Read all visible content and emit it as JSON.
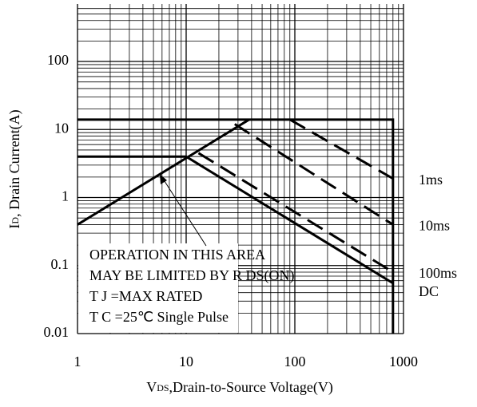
{
  "chart_data": {
    "type": "line",
    "x_label": {
      "main": "V",
      "sub": "DS",
      "rest": ",Drain-to-Source Voltage(V)"
    },
    "y_label": {
      "main": "I",
      "sub": "D",
      "rest": ", Drain Current(A)"
    },
    "log_x": true,
    "log_y": true,
    "grid": true,
    "xlim": [
      1,
      1000
    ],
    "ylim": [
      0.01,
      700
    ],
    "xticks": [
      1,
      10,
      100,
      1000
    ],
    "yticks": [
      0.01,
      0.1,
      1,
      10,
      100
    ],
    "xminor_ticks": [
      2,
      3,
      4,
      5,
      6,
      7,
      8,
      9,
      20,
      30,
      40,
      50,
      60,
      70,
      80,
      90,
      200,
      300,
      400,
      500,
      600,
      700,
      800,
      900
    ],
    "yminor_ticks": [
      0.02,
      0.03,
      0.04,
      0.05,
      0.06,
      0.07,
      0.08,
      0.09,
      0.2,
      0.3,
      0.4,
      0.5,
      0.6,
      0.7,
      0.8,
      0.9,
      2,
      3,
      4,
      5,
      6,
      7,
      8,
      9,
      20,
      30,
      40,
      50,
      60,
      70,
      80,
      90,
      200,
      300,
      400,
      500,
      600
    ],
    "series": [
      {
        "name": "1ms",
        "color": "#000000",
        "dashed": true,
        "x": [
          90,
          800
        ],
        "values": [
          14,
          1.9
        ]
      },
      {
        "name": "10ms",
        "color": "#000000",
        "dashed": true,
        "x": [
          28,
          800
        ],
        "values": [
          12,
          0.4
        ]
      },
      {
        "name": "100ms",
        "color": "#000000",
        "dashed": true,
        "x": [
          13,
          800
        ],
        "values": [
          4.5,
          0.08
        ]
      },
      {
        "name": "DC",
        "color": "#000000",
        "dashed": false,
        "x": [
          1,
          10,
          800
        ],
        "values": [
          4,
          4,
          0.055
        ]
      }
    ],
    "limit_lines": [
      {
        "color": "#000000",
        "x": [
          1,
          800,
          800
        ],
        "values": [
          14,
          14,
          0.01
        ]
      },
      {
        "color": "#000000",
        "x": [
          1,
          38
        ],
        "values": [
          0.4,
          14
        ]
      }
    ],
    "annotation": [
      "OPERATION IN THIS AREA",
      "MAY BE LIMITED BY R DS(ON)",
      "T J =MAX RATED",
      "T C =25℃ Single Pulse"
    ]
  }
}
